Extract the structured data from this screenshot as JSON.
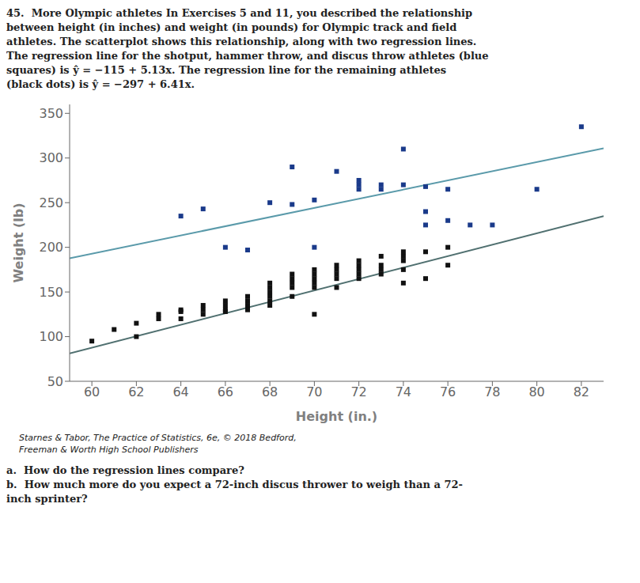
{
  "chart_data": {
    "type": "scatter",
    "title": "45.  More Olympic athletes In Exercises 5 and 11, you described the relationship\nbetween height (in inches) and weight (in pounds) for Olympic track and field\nathletes. The scatterplot shows this relationship, along with two regression lines.\nThe regression line for the shotput, hammer throw, and discus throw athletes (blue\nsquares) is ŷ = −115 + 5.13x. The regression line for the remaining athletes\n(black dots) is ŷ = −297 + 6.41x.",
    "xlabel": "Height (in.)",
    "ylabel": "Weight (lb)",
    "annotations": [
      "Starnes & Tabor, The Practice of Statistics, 6e, © 2018 Bedford,\nFreeman & Worth High School Publishers",
      "a.  How do the regression lines compare?",
      "b.  How much more do you expect a 72-inch discus thrower to weigh than a 72-\ninch sprinter?"
    ],
    "xlim": [
      59,
      83
    ],
    "ylim": [
      50,
      360
    ],
    "xticks": [
      60,
      62,
      64,
      66,
      68,
      70,
      72,
      74,
      76,
      78,
      80,
      82
    ],
    "yticks": [
      50,
      100,
      150,
      200,
      250,
      300,
      350
    ],
    "grid": false,
    "series": [
      {
        "type": "scatter",
        "marker": "square",
        "color": "#1a3a8a",
        "x": [
          64,
          65,
          66,
          67,
          68,
          69,
          69,
          70,
          70,
          71,
          72,
          72,
          72,
          73,
          73,
          74,
          74,
          75,
          75,
          75,
          76,
          76,
          77,
          78,
          80,
          82
        ],
        "values": [
          235,
          243,
          200,
          197,
          250,
          248,
          290,
          253,
          200,
          285,
          270,
          265,
          275,
          270,
          265,
          270,
          310,
          268,
          225,
          240,
          230,
          265,
          225,
          225,
          265,
          335
        ]
      },
      {
        "type": "scatter",
        "marker": "square",
        "color": "#111111",
        "x": [
          60,
          61,
          62,
          62,
          63,
          63,
          64,
          64,
          64,
          65,
          65,
          65,
          66,
          66,
          66,
          66,
          67,
          67,
          67,
          67,
          68,
          68,
          68,
          68,
          68,
          68,
          69,
          69,
          69,
          69,
          69,
          70,
          70,
          70,
          70,
          70,
          70,
          71,
          71,
          71,
          71,
          71,
          72,
          72,
          72,
          72,
          72,
          73,
          73,
          73,
          73,
          74,
          74,
          74,
          74,
          74,
          75,
          75,
          76,
          76
        ],
        "values": [
          95,
          108,
          100,
          115,
          125,
          120,
          128,
          130,
          120,
          130,
          135,
          125,
          130,
          135,
          140,
          128,
          135,
          140,
          145,
          130,
          145,
          150,
          155,
          140,
          160,
          135,
          155,
          160,
          165,
          170,
          145,
          160,
          165,
          170,
          175,
          155,
          125,
          165,
          170,
          175,
          180,
          155,
          170,
          175,
          180,
          185,
          165,
          175,
          180,
          190,
          170,
          185,
          190,
          175,
          195,
          160,
          195,
          165,
          180,
          200
        ]
      },
      {
        "type": "line",
        "color": "#5a9aaa",
        "x": [
          59,
          83
        ],
        "values": [
          187.67,
          310.79
        ]
      },
      {
        "type": "line",
        "color": "#507070",
        "x": [
          59,
          83
        ],
        "values": [
          81.19,
          235.03
        ]
      }
    ]
  }
}
